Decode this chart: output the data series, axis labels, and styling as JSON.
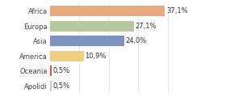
{
  "categories": [
    "Africa",
    "Europa",
    "Asia",
    "America",
    "Oceania",
    "Apolidi"
  ],
  "values": [
    37.1,
    27.1,
    24.0,
    10.9,
    0.5,
    0.5
  ],
  "labels": [
    "37,1%",
    "27,1%",
    "24,0%",
    "10,9%",
    "0,5%",
    "0,5%"
  ],
  "bar_colors": [
    "#e8a97e",
    "#b5c9a0",
    "#7b93be",
    "#f0d080",
    "#e05050",
    "#c8c8c8"
  ],
  "background_color": "#ffffff",
  "xlim": [
    0,
    48
  ],
  "bar_height": 0.72,
  "label_fontsize": 6.0,
  "tick_fontsize": 6.0
}
